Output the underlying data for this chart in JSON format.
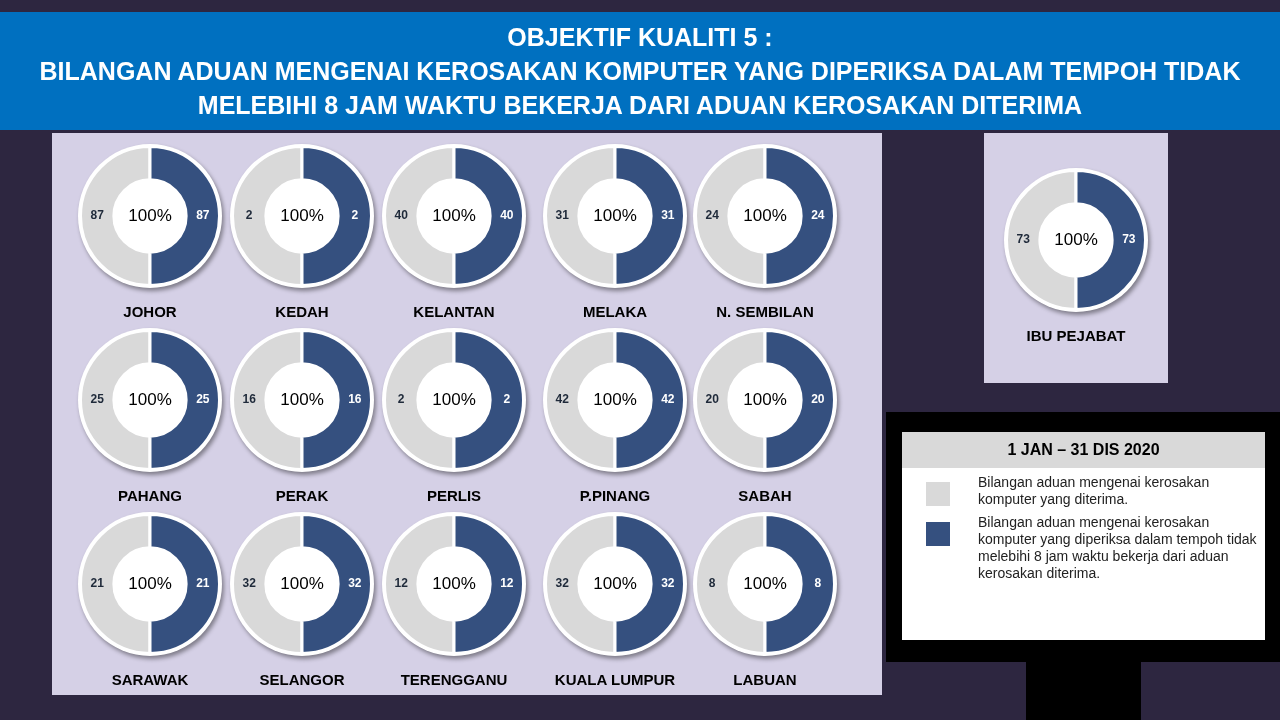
{
  "chart_data": [
    {
      "type": "other",
      "title": "OBJEKTIF KUALITI 5 :",
      "subtitle": "BILANGAN ADUAN MENGENAI KEROSAKAN KOMPUTER YANG DIPERIKSA DALAM TEMPOH TIDAK MELEBIHI 8 JAM WAKTU BEKERJA DARI ADUAN KEROSAKAN DITERIMA"
    },
    {
      "type": "donut",
      "title": "JOHOR",
      "categories": [
        null,
        null
      ],
      "values": [
        87,
        87
      ],
      "colors": [
        "#d9d9d9",
        "#35507f"
      ],
      "data_labels": true,
      "annotations": [
        "100%"
      ]
    },
    {
      "type": "donut",
      "title": "KEDAH",
      "categories": [
        null,
        null
      ],
      "values": [
        2,
        2
      ],
      "colors": [
        "#d9d9d9",
        "#35507f"
      ],
      "data_labels": true,
      "annotations": [
        "100%"
      ]
    },
    {
      "type": "donut",
      "title": "KELANTAN",
      "categories": [
        null,
        null
      ],
      "values": [
        40,
        40
      ],
      "colors": [
        "#d9d9d9",
        "#35507f"
      ],
      "data_labels": true,
      "annotations": [
        "100%"
      ]
    },
    {
      "type": "donut",
      "title": "MELAKA",
      "categories": [
        null,
        null
      ],
      "values": [
        31,
        31
      ],
      "colors": [
        "#d9d9d9",
        "#35507f"
      ],
      "data_labels": true,
      "annotations": [
        "100%"
      ]
    },
    {
      "type": "donut",
      "title": "N. SEMBILAN",
      "categories": [
        null,
        null
      ],
      "values": [
        24,
        24
      ],
      "colors": [
        "#d9d9d9",
        "#35507f"
      ],
      "data_labels": true,
      "annotations": [
        "100%"
      ]
    },
    {
      "type": "donut",
      "title": "PAHANG",
      "categories": [
        null,
        null
      ],
      "values": [
        25,
        25
      ],
      "colors": [
        "#d9d9d9",
        "#35507f"
      ],
      "data_labels": true,
      "annotations": [
        "100%"
      ]
    },
    {
      "type": "donut",
      "title": "PERAK",
      "categories": [
        null,
        null
      ],
      "values": [
        16,
        16
      ],
      "colors": [
        "#d9d9d9",
        "#35507f"
      ],
      "data_labels": true,
      "annotations": [
        "100%"
      ]
    },
    {
      "type": "donut",
      "title": "PERLIS",
      "categories": [
        null,
        null
      ],
      "values": [
        2,
        2
      ],
      "colors": [
        "#d9d9d9",
        "#35507f"
      ],
      "data_labels": true,
      "annotations": [
        "100%"
      ]
    },
    {
      "type": "donut",
      "title": "P.PINANG",
      "categories": [
        null,
        null
      ],
      "values": [
        42,
        42
      ],
      "colors": [
        "#d9d9d9",
        "#35507f"
      ],
      "data_labels": true,
      "annotations": [
        "100%"
      ]
    },
    {
      "type": "donut",
      "title": "SABAH",
      "categories": [
        null,
        null
      ],
      "values": [
        20,
        20
      ],
      "colors": [
        "#d9d9d9",
        "#35507f"
      ],
      "data_labels": true,
      "annotations": [
        "100%"
      ]
    },
    {
      "type": "donut",
      "title": "SARAWAK",
      "categories": [
        null,
        null
      ],
      "values": [
        21,
        21
      ],
      "colors": [
        "#d9d9d9",
        "#35507f"
      ],
      "data_labels": true,
      "annotations": [
        "100%"
      ]
    },
    {
      "type": "donut",
      "title": "SELANGOR",
      "categories": [
        null,
        null
      ],
      "values": [
        32,
        32
      ],
      "colors": [
        "#d9d9d9",
        "#35507f"
      ],
      "data_labels": true,
      "annotations": [
        "100%"
      ]
    },
    {
      "type": "donut",
      "title": "TERENGGANU",
      "categories": [
        null,
        null
      ],
      "values": [
        12,
        12
      ],
      "colors": [
        "#d9d9d9",
        "#35507f"
      ],
      "data_labels": true,
      "annotations": [
        "100%"
      ]
    },
    {
      "type": "donut",
      "title": "KUALA LUMPUR",
      "categories": [
        null,
        null
      ],
      "values": [
        32,
        32
      ],
      "colors": [
        "#d9d9d9",
        "#35507f"
      ],
      "data_labels": true,
      "annotations": [
        "100%"
      ]
    },
    {
      "type": "donut",
      "title": "LABUAN",
      "categories": [
        null,
        null
      ],
      "values": [
        8,
        8
      ],
      "colors": [
        "#d9d9d9",
        "#35507f"
      ],
      "data_labels": true,
      "annotations": [
        "100%"
      ]
    },
    {
      "type": "donut",
      "title": "IBU PEJABAT",
      "categories": [
        null,
        null
      ],
      "values": [
        73,
        73
      ],
      "colors": [
        "#d9d9d9",
        "#35507f"
      ],
      "data_labels": true,
      "annotations": [
        "100%"
      ]
    },
    {
      "type": "other",
      "title": "1 JAN – 31 DIS 2020",
      "annotations": [
        "Bilangan aduan mengenai kerosakan komputer yang diterima.",
        "Bilangan aduan mengenai kerosakan komputer yang diperiksa dalam tempoh tidak melebihi 8 jam waktu bekerja dari aduan kerosakan diterima."
      ]
    }
  ]
}
